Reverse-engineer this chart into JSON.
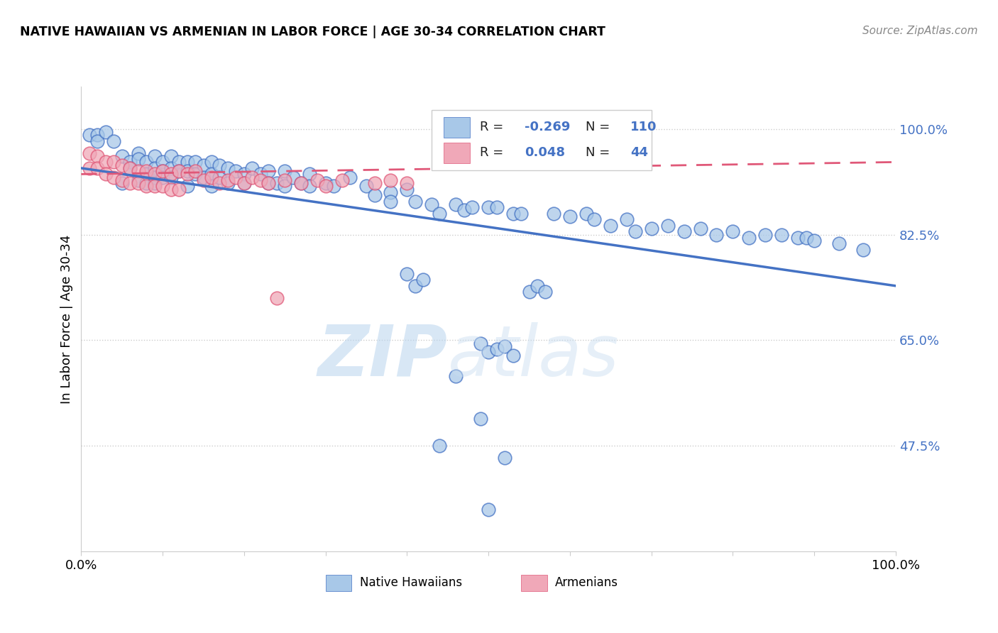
{
  "title": "NATIVE HAWAIIAN VS ARMENIAN IN LABOR FORCE | AGE 30-34 CORRELATION CHART",
  "source": "Source: ZipAtlas.com",
  "ylabel": "In Labor Force | Age 30-34",
  "xlim": [
    0.0,
    1.0
  ],
  "ylim": [
    0.3,
    1.07
  ],
  "yticks": [
    0.475,
    0.65,
    0.825,
    1.0
  ],
  "ytick_labels": [
    "47.5%",
    "65.0%",
    "82.5%",
    "100.0%"
  ],
  "blue_color": "#a8c8e8",
  "pink_color": "#f0a8b8",
  "blue_line_color": "#4472c4",
  "pink_line_color": "#e05878",
  "label1": "Native Hawaiians",
  "label2": "Armenians",
  "watermark_zip": "ZIP",
  "watermark_atlas": "atlas",
  "blue_scatter": [
    [
      0.01,
      0.99
    ],
    [
      0.02,
      0.99
    ],
    [
      0.02,
      0.98
    ],
    [
      0.03,
      0.995
    ],
    [
      0.04,
      0.98
    ],
    [
      0.05,
      0.955
    ],
    [
      0.05,
      0.91
    ],
    [
      0.06,
      0.945
    ],
    [
      0.06,
      0.935
    ],
    [
      0.07,
      0.96
    ],
    [
      0.07,
      0.95
    ],
    [
      0.07,
      0.915
    ],
    [
      0.08,
      0.945
    ],
    [
      0.08,
      0.925
    ],
    [
      0.08,
      0.91
    ],
    [
      0.09,
      0.955
    ],
    [
      0.09,
      0.935
    ],
    [
      0.09,
      0.92
    ],
    [
      0.09,
      0.91
    ],
    [
      0.1,
      0.945
    ],
    [
      0.1,
      0.93
    ],
    [
      0.1,
      0.92
    ],
    [
      0.11,
      0.955
    ],
    [
      0.11,
      0.935
    ],
    [
      0.11,
      0.92
    ],
    [
      0.12,
      0.945
    ],
    [
      0.12,
      0.93
    ],
    [
      0.13,
      0.945
    ],
    [
      0.13,
      0.93
    ],
    [
      0.13,
      0.905
    ],
    [
      0.14,
      0.945
    ],
    [
      0.14,
      0.925
    ],
    [
      0.15,
      0.94
    ],
    [
      0.15,
      0.92
    ],
    [
      0.16,
      0.945
    ],
    [
      0.16,
      0.925
    ],
    [
      0.16,
      0.905
    ],
    [
      0.17,
      0.94
    ],
    [
      0.17,
      0.92
    ],
    [
      0.18,
      0.935
    ],
    [
      0.18,
      0.91
    ],
    [
      0.19,
      0.93
    ],
    [
      0.2,
      0.925
    ],
    [
      0.2,
      0.91
    ],
    [
      0.21,
      0.935
    ],
    [
      0.22,
      0.925
    ],
    [
      0.23,
      0.93
    ],
    [
      0.23,
      0.91
    ],
    [
      0.24,
      0.91
    ],
    [
      0.25,
      0.93
    ],
    [
      0.25,
      0.905
    ],
    [
      0.26,
      0.92
    ],
    [
      0.27,
      0.91
    ],
    [
      0.28,
      0.925
    ],
    [
      0.28,
      0.905
    ],
    [
      0.3,
      0.91
    ],
    [
      0.31,
      0.905
    ],
    [
      0.33,
      0.92
    ],
    [
      0.35,
      0.905
    ],
    [
      0.36,
      0.89
    ],
    [
      0.38,
      0.895
    ],
    [
      0.38,
      0.88
    ],
    [
      0.4,
      0.9
    ],
    [
      0.41,
      0.88
    ],
    [
      0.43,
      0.875
    ],
    [
      0.44,
      0.86
    ],
    [
      0.46,
      0.875
    ],
    [
      0.47,
      0.865
    ],
    [
      0.48,
      0.87
    ],
    [
      0.5,
      0.87
    ],
    [
      0.51,
      0.87
    ],
    [
      0.53,
      0.86
    ],
    [
      0.54,
      0.86
    ],
    [
      0.55,
      0.73
    ],
    [
      0.56,
      0.74
    ],
    [
      0.57,
      0.73
    ],
    [
      0.49,
      0.645
    ],
    [
      0.5,
      0.63
    ],
    [
      0.51,
      0.635
    ],
    [
      0.52,
      0.64
    ],
    [
      0.53,
      0.625
    ],
    [
      0.4,
      0.76
    ],
    [
      0.41,
      0.74
    ],
    [
      0.42,
      0.75
    ],
    [
      0.46,
      0.59
    ],
    [
      0.49,
      0.52
    ],
    [
      0.52,
      0.455
    ],
    [
      0.58,
      0.86
    ],
    [
      0.6,
      0.855
    ],
    [
      0.62,
      0.86
    ],
    [
      0.63,
      0.85
    ],
    [
      0.65,
      0.84
    ],
    [
      0.67,
      0.85
    ],
    [
      0.68,
      0.83
    ],
    [
      0.7,
      0.835
    ],
    [
      0.72,
      0.84
    ],
    [
      0.74,
      0.83
    ],
    [
      0.76,
      0.835
    ],
    [
      0.78,
      0.825
    ],
    [
      0.8,
      0.83
    ],
    [
      0.82,
      0.82
    ],
    [
      0.84,
      0.825
    ],
    [
      0.86,
      0.825
    ],
    [
      0.88,
      0.82
    ],
    [
      0.89,
      0.82
    ],
    [
      0.9,
      0.815
    ],
    [
      0.93,
      0.81
    ],
    [
      0.96,
      0.8
    ],
    [
      0.44,
      0.475
    ],
    [
      0.5,
      0.37
    ],
    [
      0.57,
      0.99
    ]
  ],
  "pink_scatter": [
    [
      0.01,
      0.96
    ],
    [
      0.01,
      0.935
    ],
    [
      0.02,
      0.955
    ],
    [
      0.02,
      0.935
    ],
    [
      0.03,
      0.945
    ],
    [
      0.03,
      0.925
    ],
    [
      0.04,
      0.945
    ],
    [
      0.04,
      0.92
    ],
    [
      0.05,
      0.94
    ],
    [
      0.05,
      0.915
    ],
    [
      0.06,
      0.935
    ],
    [
      0.06,
      0.91
    ],
    [
      0.07,
      0.93
    ],
    [
      0.07,
      0.91
    ],
    [
      0.08,
      0.93
    ],
    [
      0.08,
      0.905
    ],
    [
      0.09,
      0.925
    ],
    [
      0.09,
      0.905
    ],
    [
      0.1,
      0.93
    ],
    [
      0.1,
      0.905
    ],
    [
      0.11,
      0.925
    ],
    [
      0.11,
      0.9
    ],
    [
      0.12,
      0.93
    ],
    [
      0.12,
      0.9
    ],
    [
      0.13,
      0.925
    ],
    [
      0.14,
      0.93
    ],
    [
      0.15,
      0.915
    ],
    [
      0.16,
      0.92
    ],
    [
      0.17,
      0.91
    ],
    [
      0.18,
      0.915
    ],
    [
      0.19,
      0.92
    ],
    [
      0.2,
      0.91
    ],
    [
      0.21,
      0.92
    ],
    [
      0.22,
      0.915
    ],
    [
      0.23,
      0.91
    ],
    [
      0.24,
      0.72
    ],
    [
      0.25,
      0.915
    ],
    [
      0.27,
      0.91
    ],
    [
      0.29,
      0.915
    ],
    [
      0.3,
      0.905
    ],
    [
      0.32,
      0.915
    ],
    [
      0.36,
      0.91
    ],
    [
      0.38,
      0.915
    ],
    [
      0.4,
      0.91
    ]
  ]
}
